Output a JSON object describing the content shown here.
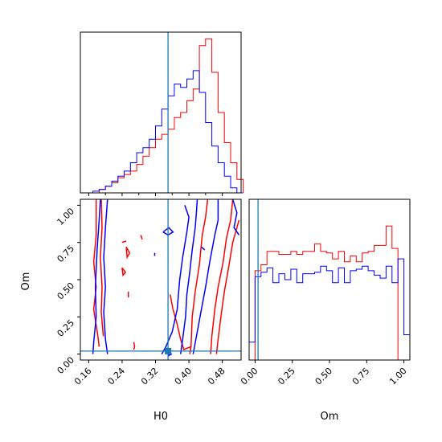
{
  "chart_data": {
    "type": "corner",
    "parameters": [
      "H0",
      "Om"
    ],
    "truth": {
      "H0": 0.35,
      "Om": 0.02
    },
    "colors": {
      "red": "#ff0000",
      "blue": "#0000ff",
      "truth": "#1f77b4"
    },
    "x_ranges": {
      "H0": [
        0.14,
        0.525
      ],
      "Om": [
        -0.04,
        1.04
      ]
    },
    "y_ranges": {
      "Om": [
        -0.04,
        1.04
      ]
    },
    "ticks": {
      "H0": [
        "0.16",
        "0.24",
        "0.32",
        "0.40",
        "0.48"
      ],
      "Om": [
        "0.00",
        "0.25",
        "0.50",
        "0.75",
        "1.00"
      ],
      "H0_minor": [
        0.2,
        0.28,
        0.36,
        0.44
      ]
    },
    "labels": {
      "H0": "H0",
      "Om": "Om"
    },
    "hist_H0": {
      "bin_edges": [
        0.14,
        0.155,
        0.17,
        0.185,
        0.2,
        0.215,
        0.23,
        0.245,
        0.26,
        0.275,
        0.29,
        0.305,
        0.32,
        0.335,
        0.35,
        0.365,
        0.38,
        0.395,
        0.41,
        0.425,
        0.44,
        0.455,
        0.47,
        0.485,
        0.5,
        0.515,
        0.53
      ],
      "series": [
        {
          "color": "red",
          "values": [
            0,
            0,
            0,
            2,
            4,
            6,
            9,
            11,
            13,
            17,
            22,
            27,
            32,
            35,
            38,
            45,
            48,
            55,
            62,
            88,
            92,
            72,
            48,
            30,
            18,
            8
          ]
        },
        {
          "color": "blue",
          "values": [
            0,
            0,
            1,
            2,
            4,
            7,
            10,
            13,
            18,
            24,
            27,
            32,
            40,
            50,
            58,
            65,
            63,
            68,
            73,
            60,
            42,
            28,
            18,
            10,
            3,
            0
          ]
        }
      ]
    },
    "hist_Om": {
      "bin_edges": [
        -0.04,
        0.0,
        0.04,
        0.08,
        0.12,
        0.16,
        0.2,
        0.24,
        0.28,
        0.32,
        0.36,
        0.4,
        0.44,
        0.48,
        0.52,
        0.56,
        0.6,
        0.64,
        0.68,
        0.72,
        0.76,
        0.8,
        0.84,
        0.88,
        0.92,
        0.96,
        1.0,
        1.04
      ],
      "series": [
        {
          "color": "red",
          "values": [
            0,
            60,
            64,
            73,
            73,
            71,
            71,
            73,
            71,
            73,
            73,
            78,
            73,
            72,
            68,
            73,
            66,
            70,
            66,
            72,
            73,
            77,
            77,
            90,
            75,
            0,
            0
          ]
        },
        {
          "color": "blue",
          "values": [
            12,
            56,
            59,
            62,
            52,
            58,
            54,
            61,
            52,
            58,
            58,
            59,
            63,
            60,
            52,
            62,
            52,
            60,
            61,
            63,
            60,
            57,
            55,
            63,
            52,
            68,
            17
          ]
        }
      ]
    }
  }
}
